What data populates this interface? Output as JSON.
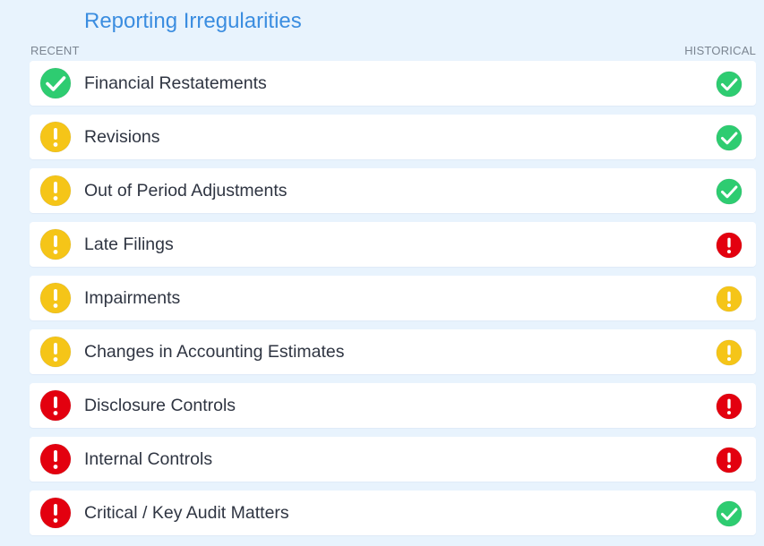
{
  "header": {
    "title": "Reporting Irregularities",
    "recent_label": "RECENT",
    "historical_label": "HISTORICAL"
  },
  "status_colors": {
    "ok": "#2ecc71",
    "warning": "#f5c518",
    "alert": "#e3000f"
  },
  "status_icons": {
    "ok": "check-icon",
    "warning": "exclamation-icon",
    "alert": "exclamation-icon"
  },
  "items": [
    {
      "label": "Financial Restatements",
      "recent": "ok",
      "historical": "ok"
    },
    {
      "label": "Revisions",
      "recent": "warning",
      "historical": "ok"
    },
    {
      "label": "Out of Period Adjustments",
      "recent": "warning",
      "historical": "ok"
    },
    {
      "label": "Late Filings",
      "recent": "warning",
      "historical": "alert"
    },
    {
      "label": "Impairments",
      "recent": "warning",
      "historical": "warning"
    },
    {
      "label": "Changes in Accounting Estimates",
      "recent": "warning",
      "historical": "warning"
    },
    {
      "label": "Disclosure Controls",
      "recent": "alert",
      "historical": "alert"
    },
    {
      "label": "Internal Controls",
      "recent": "alert",
      "historical": "alert"
    },
    {
      "label": "Critical / Key Audit Matters",
      "recent": "alert",
      "historical": "ok"
    }
  ]
}
